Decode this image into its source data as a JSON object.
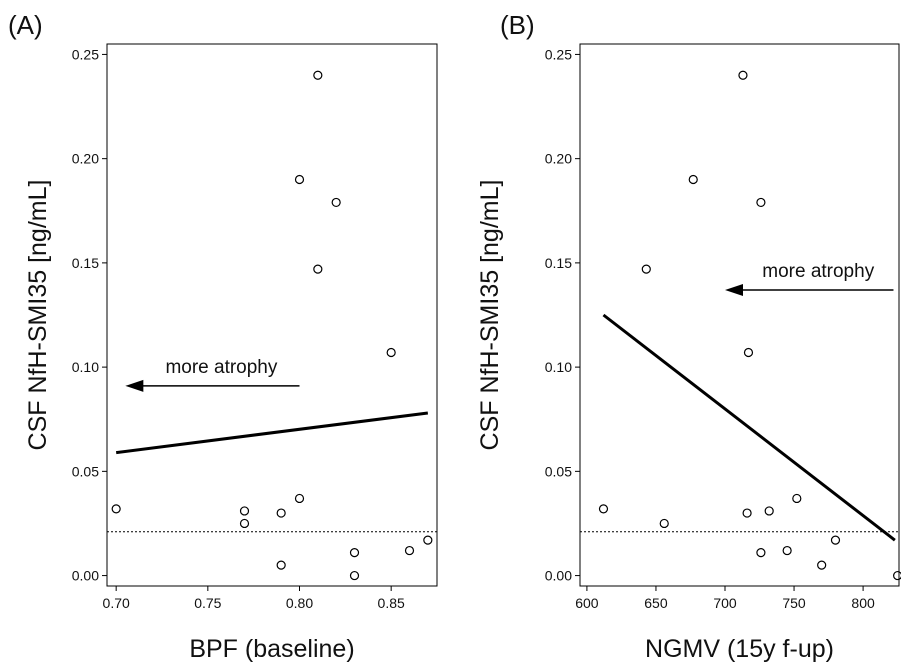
{
  "colors": {
    "background": "#ffffff",
    "points": "#000000",
    "fit_line": "#000000",
    "reference_line": "#000000",
    "frame": "#000000"
  },
  "chart_data": [
    {
      "type": "scatter",
      "panel_label": "(A)",
      "xlabel": "BPF (baseline)",
      "ylabel": "CSF NfH-SMI35 [ng/mL]",
      "xlim": [
        0.695,
        0.875
      ],
      "ylim": [
        -0.005,
        0.255
      ],
      "xticks": [
        0.7,
        0.75,
        0.8,
        0.85
      ],
      "xtick_labels": [
        "0.70",
        "0.75",
        "0.80",
        "0.85"
      ],
      "yticks": [
        0.0,
        0.05,
        0.1,
        0.15,
        0.2,
        0.25
      ],
      "ytick_labels": [
        "0.00",
        "0.05",
        "0.10",
        "0.15",
        "0.20",
        "0.25"
      ],
      "points": [
        {
          "x": 0.7,
          "y": 0.032
        },
        {
          "x": 0.77,
          "y": 0.031
        },
        {
          "x": 0.77,
          "y": 0.025
        },
        {
          "x": 0.79,
          "y": 0.03
        },
        {
          "x": 0.79,
          "y": 0.005
        },
        {
          "x": 0.8,
          "y": 0.037
        },
        {
          "x": 0.8,
          "y": 0.19
        },
        {
          "x": 0.81,
          "y": 0.24
        },
        {
          "x": 0.81,
          "y": 0.147
        },
        {
          "x": 0.82,
          "y": 0.179
        },
        {
          "x": 0.83,
          "y": 0.011
        },
        {
          "x": 0.83,
          "y": 0.0
        },
        {
          "x": 0.85,
          "y": 0.107
        },
        {
          "x": 0.86,
          "y": 0.012
        },
        {
          "x": 0.87,
          "y": 0.017
        }
      ],
      "fit_line": {
        "x": [
          0.7,
          0.87
        ],
        "y": [
          0.059,
          0.078
        ]
      },
      "reference_line": {
        "y": 0.021,
        "style": "dotted"
      },
      "annotation": {
        "text": "more atrophy",
        "arrow_from": {
          "x": 0.8,
          "y": 0.091
        },
        "arrow_to": {
          "x": 0.705,
          "y": 0.091
        }
      }
    },
    {
      "type": "scatter",
      "panel_label": "(B)",
      "xlabel": "NGMV (15y f-up)",
      "ylabel": "CSF NfH-SMI35 [ng/mL]",
      "xlim": [
        595,
        826
      ],
      "ylim": [
        -0.005,
        0.255
      ],
      "xticks": [
        600,
        650,
        700,
        750,
        800
      ],
      "xtick_labels": [
        "600",
        "650",
        "700",
        "750",
        "800"
      ],
      "yticks": [
        0.0,
        0.05,
        0.1,
        0.15,
        0.2,
        0.25
      ],
      "ytick_labels": [
        "0.00",
        "0.05",
        "0.10",
        "0.15",
        "0.20",
        "0.25"
      ],
      "points": [
        {
          "x": 612,
          "y": 0.032
        },
        {
          "x": 643,
          "y": 0.147
        },
        {
          "x": 656,
          "y": 0.025
        },
        {
          "x": 677,
          "y": 0.19
        },
        {
          "x": 713,
          "y": 0.24
        },
        {
          "x": 716,
          "y": 0.03
        },
        {
          "x": 717,
          "y": 0.107
        },
        {
          "x": 726,
          "y": 0.179
        },
        {
          "x": 726,
          "y": 0.011
        },
        {
          "x": 732,
          "y": 0.031
        },
        {
          "x": 745,
          "y": 0.012
        },
        {
          "x": 752,
          "y": 0.037
        },
        {
          "x": 770,
          "y": 0.005
        },
        {
          "x": 780,
          "y": 0.017
        },
        {
          "x": 825,
          "y": 0.0
        }
      ],
      "fit_line": {
        "x": [
          612,
          823
        ],
        "y": [
          0.125,
          0.017
        ]
      },
      "reference_line": {
        "y": 0.021,
        "style": "dotted"
      },
      "annotation": {
        "text": "more atrophy",
        "arrow_from": {
          "x": 822,
          "y": 0.137
        },
        "arrow_to": {
          "x": 700,
          "y": 0.137
        }
      }
    }
  ]
}
